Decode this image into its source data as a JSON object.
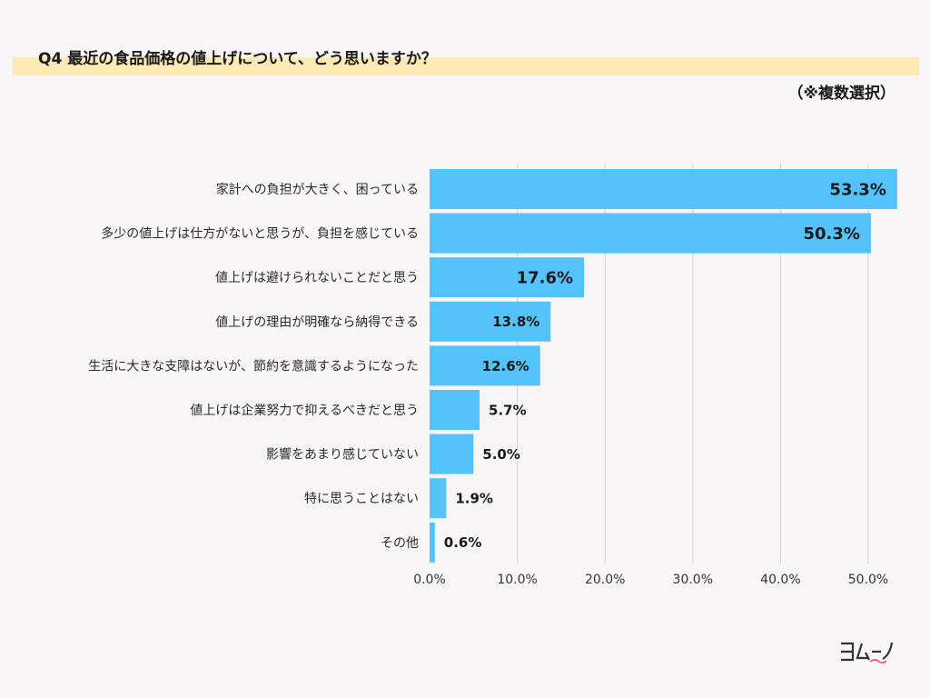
{
  "header": {
    "title": "Q4 最近の食品価格の値上げについて、どう思いますか？",
    "note": "（※複数選択）"
  },
  "brand": {
    "logo_text": "ヨムーノ",
    "accent": "#e8556a"
  },
  "colors": {
    "bar": "#55c3fb",
    "grid": "#d3d3d3",
    "title_band": "#fde9b3",
    "background": "#f7f5f5"
  },
  "chart_data": {
    "type": "bar",
    "orientation": "horizontal",
    "categories": [
      "家計への負担が大きく、困っている",
      "多少の値上げは仕方がないと思うが、負担を感じている",
      "値上げは避けられないことだと思う",
      "値上げの理由が明確なら納得できる",
      "生活に大きな支障はないが、節約を意識するようになった",
      "値上げは企業努力で抑えるべきだと思う",
      "影響をあまり感じていない",
      "特に思うことはない",
      "その他"
    ],
    "values": [
      53.3,
      50.3,
      17.6,
      13.8,
      12.6,
      5.7,
      5.0,
      1.9,
      0.6
    ],
    "value_labels": [
      "53.3%",
      "50.3%",
      "17.6%",
      "13.8%",
      "12.6%",
      "5.7%",
      "5.0%",
      "1.9%",
      "0.6%"
    ],
    "xticks": [
      "0.0%",
      "10.0%",
      "20.0%",
      "30.0%",
      "40.0%",
      "50.0%"
    ],
    "xlim": [
      0,
      55
    ],
    "grid": true,
    "legend": "none"
  }
}
